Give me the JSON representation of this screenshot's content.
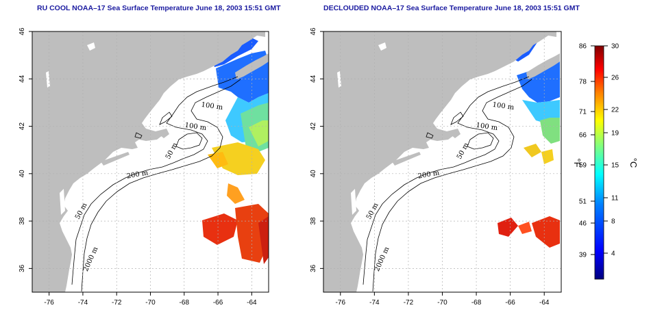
{
  "panels": [
    {
      "id": "left",
      "title": "RU COOL NOAA–17 Sea Surface Temperature June 18, 2003 15:51 GMT",
      "lon_range": [
        -77,
        -63
      ],
      "lat_range": [
        35,
        46
      ],
      "lon_ticks": [
        "-76",
        "-74",
        "-72",
        "-70",
        "-68",
        "-66",
        "-64"
      ],
      "lat_ticks": [
        "36",
        "38",
        "40",
        "42",
        "44",
        "46"
      ],
      "contour_labels": [
        "100 m",
        "100 m",
        "50 m",
        "200 m",
        "50 m",
        "2000 m"
      ]
    },
    {
      "id": "right",
      "title": "DECLOUDED NOAA–17 Sea Surface Temperature June 18, 2003 15:51 GMT",
      "lon_range": [
        -77,
        -63
      ],
      "lat_range": [
        35,
        46
      ],
      "lon_ticks": [
        "-76",
        "-74",
        "-72",
        "-70",
        "-68",
        "-66",
        "-64"
      ],
      "lat_ticks": [
        "36",
        "38",
        "40",
        "42",
        "44",
        "46"
      ],
      "contour_labels": [
        "100 m",
        "100 m",
        "50 m",
        "200 m",
        "50 m",
        "2000 m"
      ]
    }
  ],
  "colorbar": {
    "fahrenheit_label": "°F",
    "celsius_label": "°C",
    "fahrenheit_ticks": [
      "86",
      "78",
      "71",
      "66",
      "59",
      "51",
      "46",
      "39"
    ],
    "celsius_ticks": [
      "30",
      "26",
      "22",
      "19",
      "15",
      "11",
      "8",
      "4"
    ],
    "colors": [
      "#00007f",
      "#0000ff",
      "#0080ff",
      "#00ffff",
      "#80ff80",
      "#ffff00",
      "#ff8000",
      "#ff0000",
      "#7f0000"
    ]
  },
  "colors": {
    "land": "#bebebe",
    "ocean": "#ffffff",
    "title": "#1a1aa0",
    "grid": "#b0b0b0"
  }
}
